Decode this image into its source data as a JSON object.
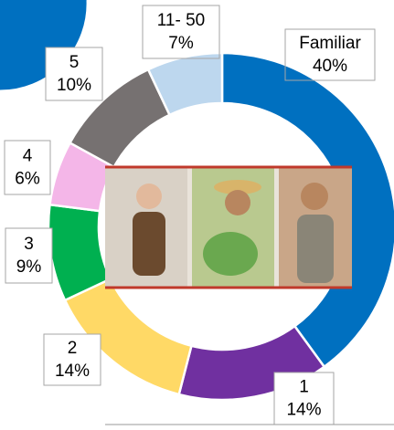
{
  "chart_data": {
    "type": "donut",
    "categories": [
      "Familiar",
      "1",
      "2",
      "3",
      "4",
      "5",
      "11- 50"
    ],
    "values": [
      40,
      14,
      14,
      9,
      6,
      10,
      7
    ],
    "value_labels": [
      "40%",
      "14%",
      "14%",
      "9%",
      "6%",
      "10%",
      "7%"
    ],
    "colors": [
      "#0070c0",
      "#7030a0",
      "#ffd966",
      "#00b050",
      "#f4b6e8",
      "#767171",
      "#bdd7ee"
    ]
  }
}
